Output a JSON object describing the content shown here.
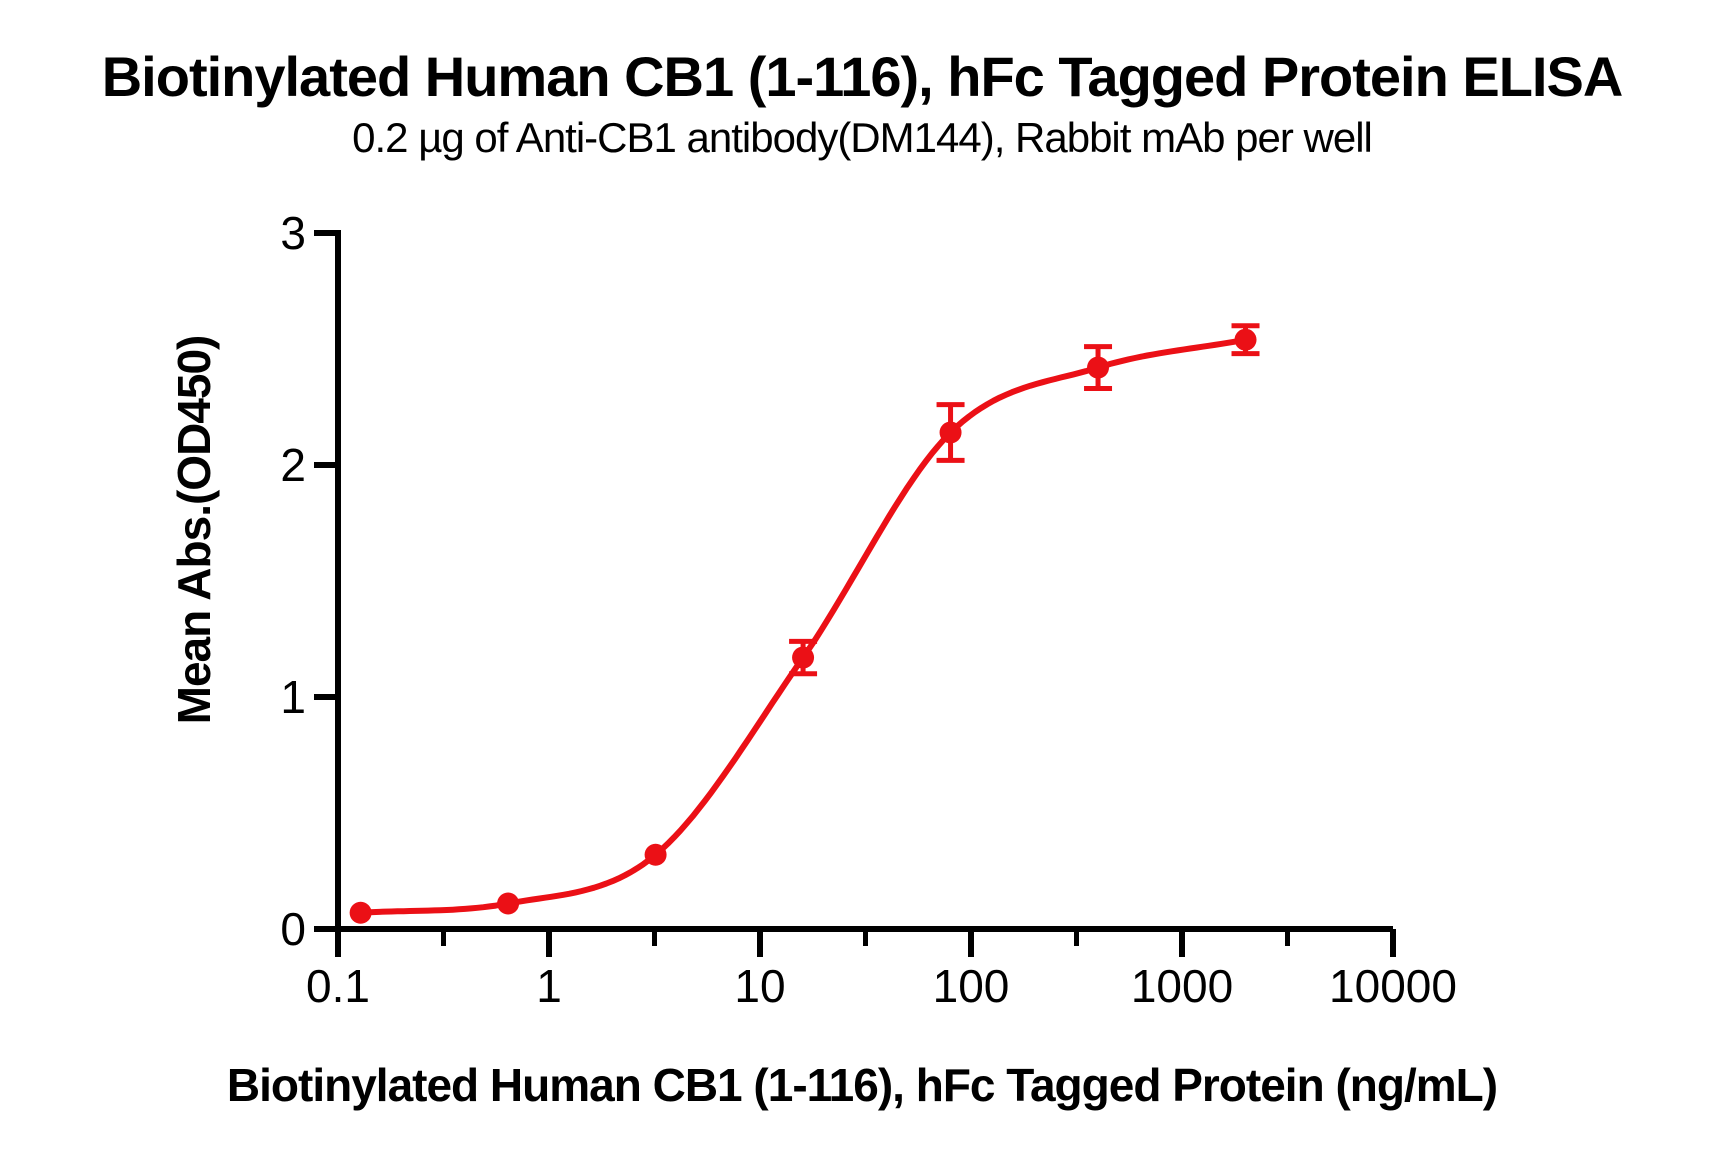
{
  "page": {
    "background": "#ffffff"
  },
  "chart_data": {
    "type": "scatter",
    "curve": "sigmoidal dose-response fit through points",
    "title": "Biotinylated Human CB1 (1-116), hFc Tagged Protein ELISA",
    "subtitle": "0.2 µg of Anti-CB1 antibody(DM144), Rabbit mAb per well",
    "xlabel": "Biotinylated Human CB1 (1-116), hFc Tagged Protein (ng/mL)",
    "ylabel": "Mean Abs.(OD450)",
    "x_scale": "log10",
    "xlim": [
      0.1,
      10000
    ],
    "ylim": [
      0,
      3
    ],
    "x_tick_labels": [
      "0.1",
      "1",
      "10",
      "100",
      "1000",
      "10000"
    ],
    "x_tick_values": [
      0.1,
      1,
      10,
      100,
      1000,
      10000
    ],
    "y_tick_labels": [
      "0",
      "1",
      "2",
      "3"
    ],
    "y_tick_values": [
      0,
      1,
      2,
      3
    ],
    "grid": false,
    "legend": "none",
    "series_color": "#EB1016",
    "axis_color": "#000000",
    "points": [
      {
        "x": 0.128,
        "y": 0.07,
        "err": 0.02
      },
      {
        "x": 0.64,
        "y": 0.11,
        "err": 0.02
      },
      {
        "x": 3.2,
        "y": 0.32,
        "err": 0.03
      },
      {
        "x": 16,
        "y": 1.17,
        "err": 0.07
      },
      {
        "x": 80,
        "y": 2.14,
        "err": 0.12
      },
      {
        "x": 400,
        "y": 2.42,
        "err": 0.09
      },
      {
        "x": 2000,
        "y": 2.54,
        "err": 0.06
      }
    ]
  }
}
